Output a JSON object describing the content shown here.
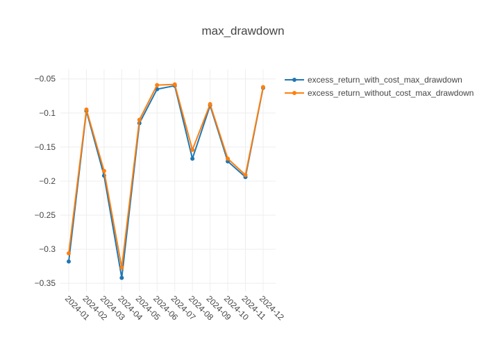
{
  "chart_data": {
    "type": "line",
    "title": "max_drawdown",
    "xlabel": "",
    "ylabel": "",
    "categories": [
      "2024-01",
      "2024-02",
      "2024-03",
      "2024-04",
      "2024-05",
      "2024-06",
      "2024-07",
      "2024-08",
      "2024-09",
      "2024-10",
      "2024-11",
      "2024-12"
    ],
    "y_ticks": [
      -0.35,
      -0.3,
      -0.25,
      -0.2,
      -0.15,
      -0.1,
      -0.05
    ],
    "y_tick_labels": [
      "−0.35",
      "−0.3",
      "−0.25",
      "−0.2",
      "−0.15",
      "−0.1",
      "−0.05"
    ],
    "ylim": [
      -0.362,
      -0.036
    ],
    "grid": true,
    "legend_position": "top-right",
    "series": [
      {
        "name": "excess_return_with_cost_max_drawdown",
        "color": "#1f77b4",
        "values": [
          -0.318,
          -0.097,
          -0.192,
          -0.342,
          -0.115,
          -0.065,
          -0.06,
          -0.167,
          -0.089,
          -0.171,
          -0.194,
          -0.063
        ]
      },
      {
        "name": "excess_return_without_cost_max_drawdown",
        "color": "#ff7f0e",
        "values": [
          -0.306,
          -0.095,
          -0.185,
          -0.327,
          -0.11,
          -0.059,
          -0.058,
          -0.154,
          -0.087,
          -0.167,
          -0.191,
          -0.062
        ]
      }
    ]
  }
}
